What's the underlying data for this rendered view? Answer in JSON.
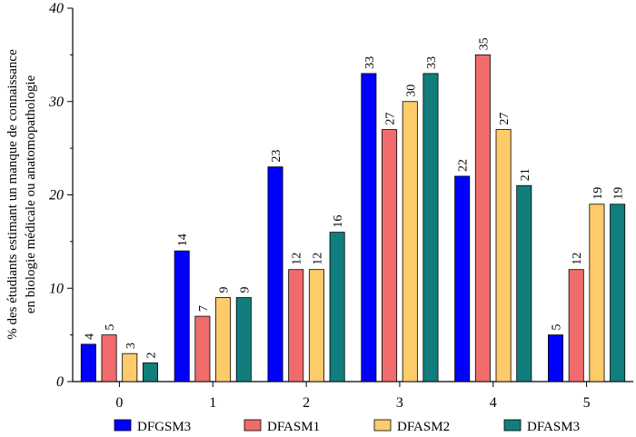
{
  "chart_data": {
    "type": "bar",
    "categories": [
      "0",
      "1",
      "2",
      "3",
      "4",
      "5"
    ],
    "series": [
      {
        "name": "DFGSM3",
        "values": [
          4,
          14,
          23,
          33,
          22,
          5
        ],
        "color": "#0000ff"
      },
      {
        "name": "DFASM1",
        "values": [
          5,
          7,
          12,
          27,
          35,
          12
        ],
        "color": "#f06b6b"
      },
      {
        "name": "DFASM2",
        "values": [
          3,
          9,
          12,
          30,
          27,
          19
        ],
        "color": "#fdcb6a"
      },
      {
        "name": "DFASM3",
        "values": [
          2,
          9,
          16,
          33,
          21,
          19
        ],
        "color": "#117d7c"
      }
    ],
    "ylabel_lines": [
      "% des étudiants estimant un manque de connaissance",
      "en biologie médicale ou anatomopathologie"
    ],
    "xlabel": "",
    "ylim": [
      0,
      40
    ],
    "yticks": [
      0,
      10,
      20,
      30,
      40
    ],
    "grid": false,
    "legend_position": "bottom"
  }
}
